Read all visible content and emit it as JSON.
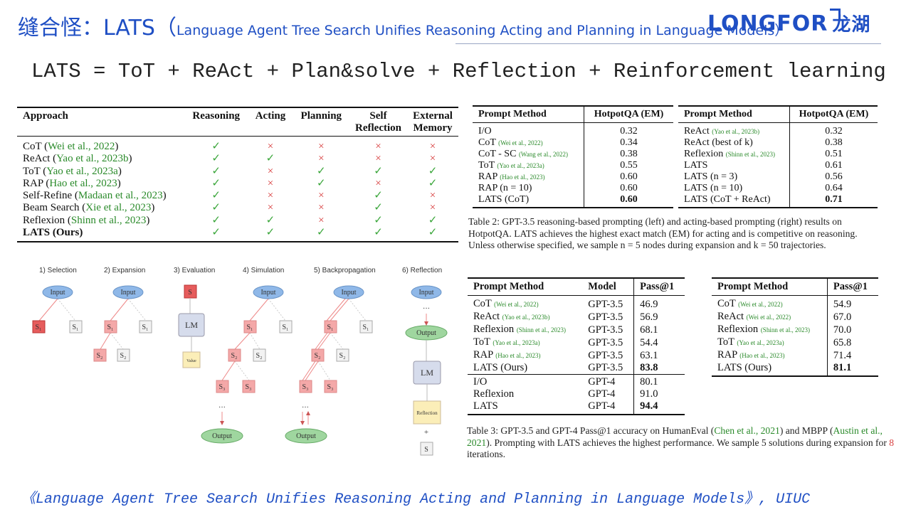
{
  "header": {
    "title_main": "缝合怪：LATS（",
    "title_sub": "Language Agent Tree Search Unifies Reasoning Acting and Planning in Language Models）",
    "logo_text": "LONGFOR",
    "logo_cn": "龙湖",
    "formula": "LATS = ToT + ReAct + Plan&solve + Reflection + Reinforcement learning"
  },
  "approach_table": {
    "headers": [
      "Approach",
      "Reasoning",
      "Acting",
      "Planning",
      "Self Reflection",
      "External Memory"
    ],
    "rows": [
      {
        "name": "CoT (",
        "cite": "Wei et al., 2022",
        "close": ")",
        "marks": [
          "✓",
          "×",
          "×",
          "×",
          "×"
        ]
      },
      {
        "name": "ReAct (",
        "cite": "Yao et al., 2023b",
        "close": ")",
        "marks": [
          "✓",
          "✓",
          "×",
          "×",
          "×"
        ]
      },
      {
        "name": "ToT (",
        "cite": "Yao et al., 2023a",
        "close": ")",
        "marks": [
          "✓",
          "×",
          "✓",
          "✓",
          "✓"
        ]
      },
      {
        "name": "RAP (",
        "cite": "Hao et al., 2023",
        "close": ")",
        "marks": [
          "✓",
          "×",
          "✓",
          "×",
          "✓"
        ]
      },
      {
        "name": "Self-Refine (",
        "cite": "Madaan et al., 2023",
        "close": ")",
        "marks": [
          "✓",
          "×",
          "×",
          "✓",
          "×"
        ]
      },
      {
        "name": "Beam Search (",
        "cite": "Xie et al., 2023",
        "close": ")",
        "marks": [
          "✓",
          "×",
          "×",
          "✓",
          "×"
        ]
      },
      {
        "name": "Reflexion (",
        "cite": "Shinn et al., 2023",
        "close": ")",
        "marks": [
          "✓",
          "✓",
          "×",
          "✓",
          "✓"
        ]
      },
      {
        "name": "LATS (Ours)",
        "cite": "",
        "close": "",
        "bold": true,
        "marks": [
          "✓",
          "✓",
          "✓",
          "✓",
          "✓"
        ]
      }
    ]
  },
  "hotpot_left": {
    "headers": [
      "Prompt Method",
      "HotpotQA (EM)"
    ],
    "rows": [
      {
        "m": "I/O",
        "c": "",
        "v": "0.32"
      },
      {
        "m": "CoT",
        "c": "(Wei et al., 2022)",
        "v": "0.34"
      },
      {
        "m": "CoT - SC",
        "c": "(Wang et al., 2022)",
        "v": "0.38"
      },
      {
        "m": "ToT",
        "c": "(Yao et al., 2023a)",
        "v": "0.55"
      },
      {
        "m": "RAP",
        "c": "(Hao et al., 2023)",
        "v": "0.60"
      },
      {
        "m": "RAP (n = 10)",
        "c": "",
        "v": "0.60"
      },
      {
        "m": "LATS (CoT)",
        "c": "",
        "v": "0.60",
        "bold": true
      }
    ]
  },
  "hotpot_right": {
    "headers": [
      "Prompt Method",
      "HotpotQA (EM)"
    ],
    "rows": [
      {
        "m": "ReAct",
        "c": "(Yao et al., 2023b)",
        "v": "0.32"
      },
      {
        "m": "ReAct (best of k)",
        "c": "",
        "v": "0.38"
      },
      {
        "m": "Reflexion",
        "c": "(Shinn et al., 2023)",
        "v": "0.51"
      },
      {
        "m": "LATS",
        "c": "",
        "v": "0.61"
      },
      {
        "m": "LATS (n = 3)",
        "c": "",
        "v": "0.56"
      },
      {
        "m": "LATS (n = 10)",
        "c": "",
        "v": "0.64"
      },
      {
        "m": "LATS (CoT + ReAct)",
        "c": "",
        "v": "0.71",
        "bold": true
      }
    ]
  },
  "caption2": "Table 2: GPT-3.5 reasoning-based prompting (left) and acting-based prompting (right) results on HotpotQA. LATS achieves the highest exact match (EM) for acting and is competitive on reasoning. Unless otherwise specified, we sample n = 5 nodes during expansion and k = 50 trajectories.",
  "pass_left": {
    "headers": [
      "Prompt Method",
      "Model",
      "Pass@1"
    ],
    "rows": [
      {
        "m": "CoT",
        "c": "(Wei et al., 2022)",
        "model": "GPT-3.5",
        "v": "46.9"
      },
      {
        "m": "ReAct",
        "c": "(Yao et al., 2023b)",
        "model": "GPT-3.5",
        "v": "56.9"
      },
      {
        "m": "Reflexion",
        "c": "(Shinn et al., 2023)",
        "model": "GPT-3.5",
        "v": "68.1"
      },
      {
        "m": "ToT",
        "c": "(Yao et al., 2023a)",
        "model": "GPT-3.5",
        "v": "54.4"
      },
      {
        "m": "RAP",
        "c": "(Hao et al., 2023)",
        "model": "GPT-3.5",
        "v": "63.1"
      },
      {
        "m": "LATS (Ours)",
        "c": "",
        "model": "GPT-3.5",
        "v": "83.8",
        "bold": true
      },
      {
        "m": "I/O",
        "c": "",
        "model": "GPT-4",
        "v": "80.1"
      },
      {
        "m": "Reflexion",
        "c": "",
        "model": "GPT-4",
        "v": "91.0"
      },
      {
        "m": "LATS",
        "c": "",
        "model": "GPT-4",
        "v": "94.4",
        "bold": true
      }
    ]
  },
  "pass_right": {
    "headers": [
      "Prompt Method",
      "Pass@1"
    ],
    "rows": [
      {
        "m": "CoT",
        "c": "(Wei et al., 2022)",
        "v": "54.9"
      },
      {
        "m": "ReAct",
        "c": "(Wei et al., 2022)",
        "v": "67.0"
      },
      {
        "m": "Reflexion",
        "c": "(Shinn et al., 2023)",
        "v": "70.0"
      },
      {
        "m": "ToT",
        "c": "(Yao et al., 2023a)",
        "v": "65.8"
      },
      {
        "m": "RAP",
        "c": "(Hao et al., 2023)",
        "v": "71.4"
      },
      {
        "m": "LATS (Ours)",
        "c": "",
        "v": "81.1",
        "bold": true
      }
    ]
  },
  "caption3": {
    "a": "Table 3: GPT-3.5 and GPT-4 Pass@1 accuracy on HumanEval (",
    "c1": "Chen et al., 2021",
    "b": ") and MBPP (",
    "c2": "Austin et al., 2021",
    "d": "). Prompting with LATS achieves the highest performance. We sample 5 solutions during expansion for ",
    "n": "8",
    "e": " iterations."
  },
  "diagram": {
    "stages": [
      "1) Selection",
      "2) Expansion",
      "3) Evaluation",
      "4) Simulation",
      "5) Backpropagation",
      "6) Reflection"
    ],
    "labels": {
      "input": "Input",
      "output": "Output",
      "lm": "LM",
      "value": "Value",
      "reflection": "Reflection",
      "s": "S",
      "s1": "S₁",
      "s2": "S₂",
      "s3": "S₃",
      "dots": "···",
      "plus": "+"
    }
  },
  "footer": "《Language Agent Tree Search Unifies Reasoning Acting and Planning in Language Models》, UIUC",
  "colors": {
    "accent": "#1f4fc4",
    "cite": "#2a8a2a",
    "check": "#3aa63a",
    "cross": "#d84040",
    "node_blue": "#8fb8e8",
    "node_red": "#f4a8a8",
    "node_green": "#9fd69f"
  }
}
